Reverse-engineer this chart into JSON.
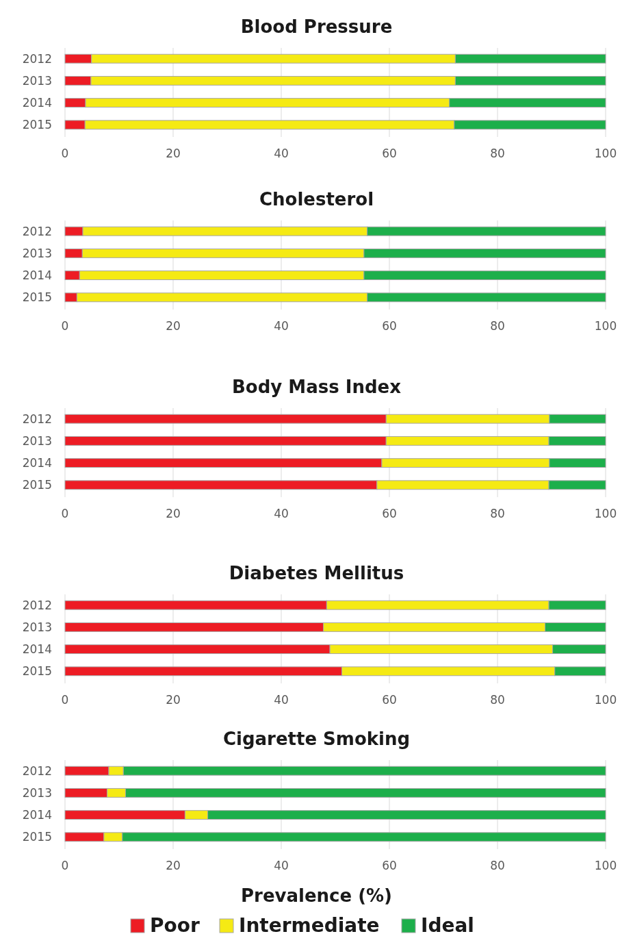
{
  "chart_data": [
    {
      "type": "bar",
      "orientation": "horizontal",
      "stacked": true,
      "title": "Blood Pressure",
      "categories": [
        "2012",
        "2013",
        "2014",
        "2015"
      ],
      "xlim": [
        0,
        100
      ],
      "xticks": [
        0,
        20,
        40,
        60,
        80,
        100
      ],
      "grid": "x",
      "legend": false,
      "series": [
        {
          "color": "#ed1c24",
          "values": [
            4.9,
            4.8,
            3.8,
            3.7
          ]
        },
        {
          "color": "#f5ea14",
          "values": [
            67.3,
            67.4,
            67.3,
            68.3
          ]
        },
        {
          "color": "#1daf4b",
          "values": [
            27.8,
            27.8,
            28.9,
            28.0
          ]
        }
      ]
    },
    {
      "type": "bar",
      "orientation": "horizontal",
      "stacked": true,
      "title": "Cholesterol",
      "categories": [
        "2012",
        "2013",
        "2014",
        "2015"
      ],
      "xlim": [
        0,
        100
      ],
      "xticks": [
        0,
        20,
        40,
        60,
        80,
        100
      ],
      "grid": "x",
      "legend": false,
      "series": [
        {
          "color": "#ed1c24",
          "values": [
            3.3,
            3.2,
            2.7,
            2.2
          ]
        },
        {
          "color": "#f5ea14",
          "values": [
            52.6,
            52.1,
            52.6,
            53.7
          ]
        },
        {
          "color": "#1daf4b",
          "values": [
            44.1,
            44.7,
            44.7,
            44.1
          ]
        }
      ]
    },
    {
      "type": "bar",
      "orientation": "horizontal",
      "stacked": true,
      "title": "Body Mass Index",
      "categories": [
        "2012",
        "2013",
        "2014",
        "2015"
      ],
      "xlim": [
        0,
        100
      ],
      "xticks": [
        0,
        20,
        40,
        60,
        80,
        100
      ],
      "grid": "x",
      "legend": false,
      "series": [
        {
          "color": "#ed1c24",
          "values": [
            59.4,
            59.4,
            58.6,
            57.7
          ]
        },
        {
          "color": "#f5ea14",
          "values": [
            30.2,
            30.1,
            31.0,
            31.8
          ]
        },
        {
          "color": "#1daf4b",
          "values": [
            10.4,
            10.5,
            10.4,
            10.5
          ]
        }
      ]
    },
    {
      "type": "bar",
      "orientation": "horizontal",
      "stacked": true,
      "title": "Diabetes Mellitus",
      "categories": [
        "2012",
        "2013",
        "2014",
        "2015"
      ],
      "xlim": [
        0,
        100
      ],
      "xticks": [
        0,
        20,
        40,
        60,
        80,
        100
      ],
      "grid": "x",
      "legend": false,
      "series": [
        {
          "color": "#ed1c24",
          "values": [
            48.4,
            47.8,
            49.0,
            51.2
          ]
        },
        {
          "color": "#f5ea14",
          "values": [
            41.1,
            41.0,
            41.2,
            39.4
          ]
        },
        {
          "color": "#1daf4b",
          "values": [
            10.5,
            11.2,
            9.8,
            9.4
          ]
        }
      ]
    },
    {
      "type": "bar",
      "orientation": "horizontal",
      "stacked": true,
      "title": "Cigarette Smoking",
      "xlabel": "Prevalence (%)",
      "categories": [
        "2012",
        "2013",
        "2014",
        "2015"
      ],
      "xlim": [
        0,
        100
      ],
      "xticks": [
        0,
        20,
        40,
        60,
        80,
        100
      ],
      "grid": "x",
      "legend": "bottom",
      "series": [
        {
          "name": "Poor",
          "color": "#ed1c24",
          "values": [
            8.1,
            7.8,
            22.2,
            7.2
          ]
        },
        {
          "name": "Intermediate",
          "color": "#f5ea14",
          "values": [
            2.7,
            3.4,
            4.2,
            3.4
          ]
        },
        {
          "name": "Ideal",
          "color": "#1daf4b",
          "values": [
            89.2,
            88.8,
            73.6,
            89.4
          ]
        }
      ]
    }
  ]
}
